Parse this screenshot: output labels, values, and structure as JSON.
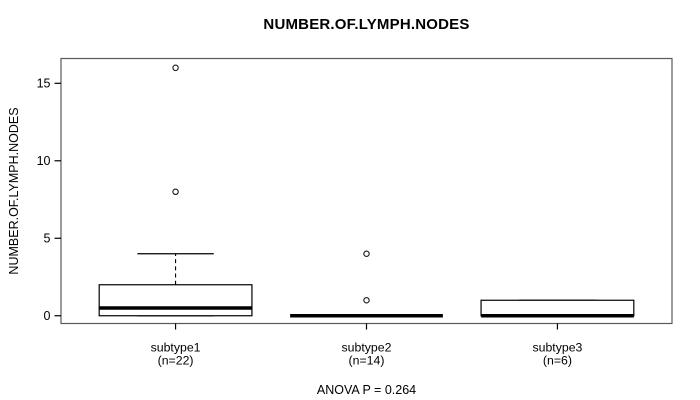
{
  "chart_data": {
    "type": "boxplot",
    "title": "NUMBER.OF.LYMPH.NODES",
    "xlabel": "",
    "ylabel": "NUMBER.OF.LYMPH.NODES",
    "annotation": "ANOVA P = 0.264",
    "yticks": [
      0,
      5,
      10,
      15
    ],
    "ylim": [
      -0.5,
      16.6
    ],
    "grid": false,
    "legend": null,
    "groups": [
      {
        "label": "subtype1",
        "sublabel": "(n=22)",
        "n": 22,
        "whisker_low": 0,
        "q1": 0,
        "median": 0.5,
        "q3": 2,
        "whisker_high": 4,
        "outliers": [
          8,
          16
        ]
      },
      {
        "label": "subtype2",
        "sublabel": "(n=14)",
        "n": 14,
        "whisker_low": 0,
        "q1": 0,
        "median": 0,
        "q3": 0,
        "whisker_high": 0,
        "outliers": [
          1,
          4
        ]
      },
      {
        "label": "subtype3",
        "sublabel": "(n=6)",
        "n": 6,
        "whisker_low": 0,
        "q1": 0,
        "median": 0,
        "q3": 1,
        "whisker_high": 1,
        "outliers": []
      }
    ],
    "colors": {
      "line": "#000000",
      "box_fill": "#ffffff",
      "frame": "#595959",
      "background": "#ffffff"
    }
  }
}
